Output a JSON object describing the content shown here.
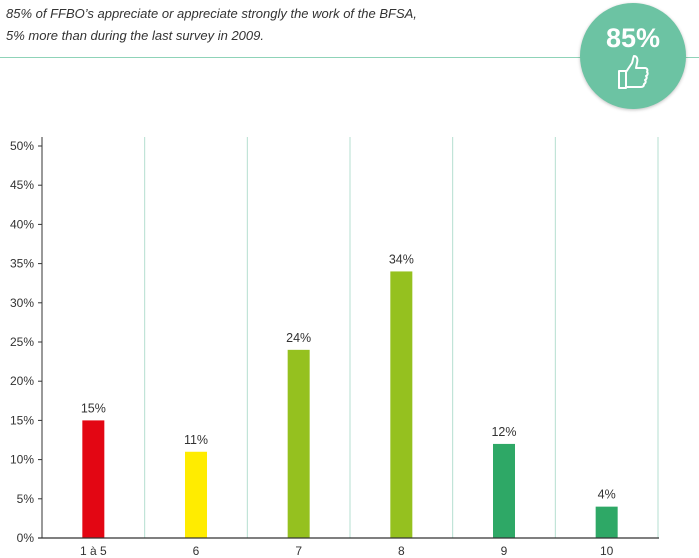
{
  "header": {
    "line1": "85% of FFBO’s appreciate or appreciate strongly the work of the BFSA,",
    "line2": "5% more than during the last survey in 2009."
  },
  "badge": {
    "value": "85%",
    "icon": "thumbs-up-icon",
    "color": "#6cc3a3"
  },
  "chart_data": {
    "type": "bar",
    "categories": [
      "1 à 5",
      "6",
      "7",
      "8",
      "9",
      "10"
    ],
    "values": [
      15,
      11,
      24,
      34,
      12,
      4
    ],
    "data_labels": [
      "15%",
      "11%",
      "24%",
      "34%",
      "12%",
      "4%"
    ],
    "colors": [
      "#e30613",
      "#ffec00",
      "#95c11f",
      "#95c11f",
      "#2ea866",
      "#2ea866"
    ],
    "ylim": [
      0,
      50
    ],
    "yticks": [
      0,
      5,
      10,
      15,
      20,
      25,
      30,
      35,
      40,
      45,
      50
    ],
    "ytick_labels": [
      "0%",
      "5%",
      "10%",
      "15%",
      "20%",
      "25%",
      "30%",
      "35%",
      "40%",
      "45%",
      "50%"
    ],
    "xlabel": "",
    "ylabel": "",
    "grid": "vertical",
    "gridline_color": "#b5dfd0"
  }
}
